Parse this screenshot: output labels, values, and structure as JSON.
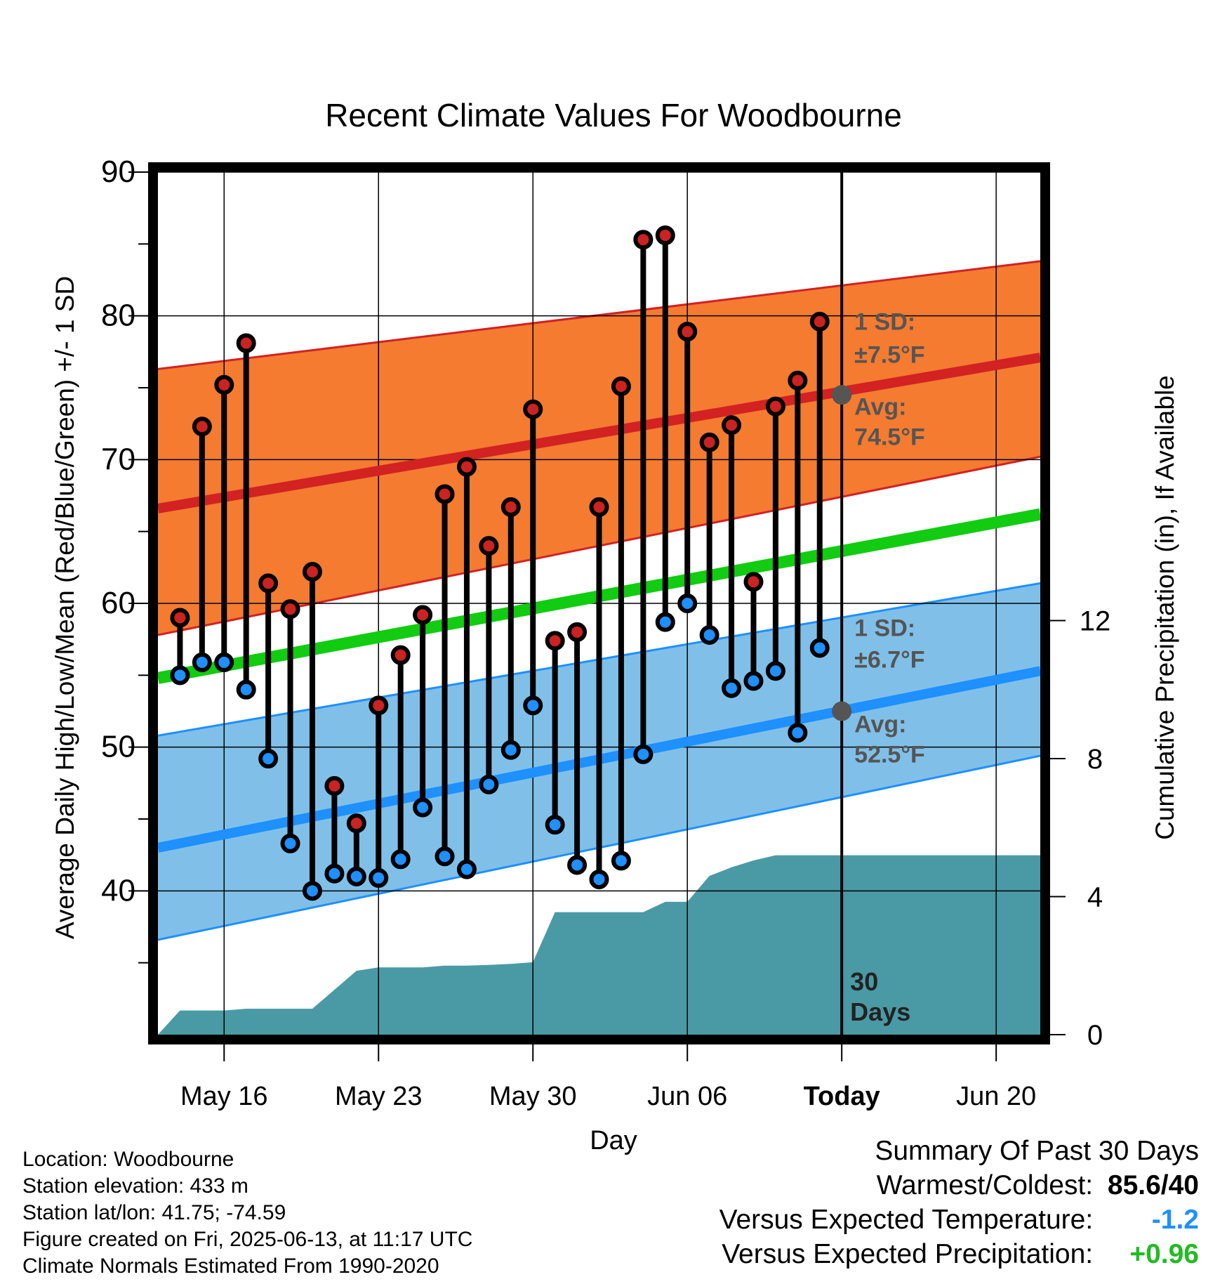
{
  "chart_data": {
    "type": "line",
    "title": "Recent Climate Values For Woodbourne",
    "xlabel": "Day",
    "ylabel": "Average Daily High/Low/Mean (Red/Blue/Green) +/- 1 SD",
    "y2label": "Cumulative Precipitation (in), If Available",
    "ylim": [
      30,
      90
    ],
    "y2lim": [
      0,
      25
    ],
    "yticks": [
      "40",
      "50",
      "60",
      "70",
      "80",
      "90"
    ],
    "y2ticks": [
      "0",
      "4",
      "8",
      "12"
    ],
    "xlim": [
      "2025-05-13",
      "2025-06-22"
    ],
    "xticks": [
      {
        "date": "2025-05-16",
        "label": "May 16"
      },
      {
        "date": "2025-05-23",
        "label": "May 23"
      },
      {
        "date": "2025-05-30",
        "label": "May 30"
      },
      {
        "date": "2025-06-06",
        "label": "Jun 06"
      },
      {
        "date": "2025-06-13",
        "label": "Today"
      },
      {
        "date": "2025-06-20",
        "label": "Jun 20"
      }
    ],
    "dates": [
      "2025-05-14",
      "2025-05-15",
      "2025-05-16",
      "2025-05-17",
      "2025-05-18",
      "2025-05-19",
      "2025-05-20",
      "2025-05-21",
      "2025-05-22",
      "2025-05-23",
      "2025-05-24",
      "2025-05-25",
      "2025-05-26",
      "2025-05-27",
      "2025-05-28",
      "2025-05-29",
      "2025-05-30",
      "2025-05-31",
      "2025-06-01",
      "2025-06-02",
      "2025-06-03",
      "2025-06-04",
      "2025-06-05",
      "2025-06-06",
      "2025-06-07",
      "2025-06-08",
      "2025-06-09",
      "2025-06-10",
      "2025-06-11",
      "2025-06-12"
    ],
    "series": [
      {
        "name": "High",
        "color": "#cc2222",
        "values": [
          59,
          72.3,
          75.2,
          78.1,
          61.4,
          59.6,
          62.2,
          47.3,
          44.7,
          52.9,
          56.4,
          59.2,
          67.6,
          69.5,
          64,
          66.7,
          73.5,
          57.4,
          58,
          66.7,
          75.1,
          85.3,
          85.6,
          78.9,
          71.2,
          72.4,
          61.5,
          73.7,
          75.5,
          79.6
        ]
      },
      {
        "name": "Low",
        "color": "#1e90ff",
        "values": [
          55,
          55.9,
          55.9,
          54,
          49.2,
          43.3,
          40,
          41.2,
          41,
          40.9,
          42.2,
          45.8,
          42.4,
          41.5,
          47.4,
          49.8,
          52.9,
          44.6,
          41.8,
          40.8,
          42.1,
          49.5,
          58.7,
          60,
          57.8,
          54.1,
          54.6,
          55.3,
          51,
          56.9
        ]
      }
    ],
    "normals": {
      "high_mean": [
        66.6,
        77.1
      ],
      "high_sd_upper": [
        76.3,
        83.8
      ],
      "high_sd_lower": [
        57.8,
        70.2
      ],
      "low_mean": [
        43,
        55.3
      ],
      "low_sd_upper": [
        50.8,
        61.4
      ],
      "low_sd_lower": [
        36.6,
        49.4
      ],
      "avg_mean": [
        54.8,
        66.2
      ]
    },
    "precip_cumulative": {
      "dates": [
        "2025-05-13",
        "2025-05-14",
        "2025-05-16",
        "2025-05-17",
        "2025-05-18",
        "2025-05-19",
        "2025-05-20",
        "2025-05-21",
        "2025-05-22",
        "2025-05-23",
        "2025-05-24",
        "2025-05-25",
        "2025-05-26",
        "2025-05-27",
        "2025-05-28",
        "2025-05-29",
        "2025-05-30",
        "2025-05-31",
        "2025-06-01",
        "2025-06-02",
        "2025-06-03",
        "2025-06-04",
        "2025-06-05",
        "2025-06-06",
        "2025-06-07",
        "2025-06-08",
        "2025-06-09",
        "2025-06-10",
        "2025-06-11",
        "2025-06-12",
        "2025-06-22"
      ],
      "values": [
        0,
        0.7,
        0.7,
        0.75,
        0.75,
        0.75,
        0.75,
        1.3,
        1.85,
        1.95,
        1.95,
        1.95,
        2.0,
        2.0,
        2.02,
        2.05,
        2.1,
        3.55,
        3.55,
        3.55,
        3.55,
        3.55,
        3.85,
        3.85,
        4.6,
        4.85,
        5.05,
        5.2,
        5.2,
        5.2,
        5.2
      ]
    },
    "annotations": {
      "high_sd_label": "1 SD:",
      "high_sd_value": "±7.5°F",
      "high_avg_label": "Avg:",
      "high_avg_value": "74.5°F",
      "high_avg_marker": 74.5,
      "low_sd_label": "1 SD:",
      "low_sd_value": "±6.7°F",
      "low_avg_label": "Avg:",
      "low_avg_value": "52.5°F",
      "low_avg_marker": 52.5,
      "period_number": "30",
      "period_unit": "Days"
    },
    "grid": true,
    "colors": {
      "high_band": "#f47b30",
      "high_line": "#d22222",
      "low_band": "#80c0e8",
      "low_line": "#1e90ff",
      "low_band_edge": "#1e90ff",
      "avg_line": "#11cc11",
      "precip": "#4a9aa5",
      "annotation": "#555555"
    }
  },
  "footer": {
    "location": "Location: Woodbourne",
    "elevation": "Station elevation: 433 m",
    "latlon": "Station lat/lon: 41.75; -74.59",
    "created": "Figure created on Fri, 2025-06-13, at 11:17 UTC",
    "normals": "Climate Normals Estimated From 1990-2020"
  },
  "summary": {
    "title": "Summary Of Past 30 Days",
    "warmest_coldest_label": "Warmest/Coldest:",
    "warmest_coldest_value": "85.6/40",
    "temp_label": "Versus Expected Temperature:",
    "temp_value": "-1.2",
    "precip_label": "Versus Expected Precipitation:",
    "precip_value": "+0.96"
  }
}
